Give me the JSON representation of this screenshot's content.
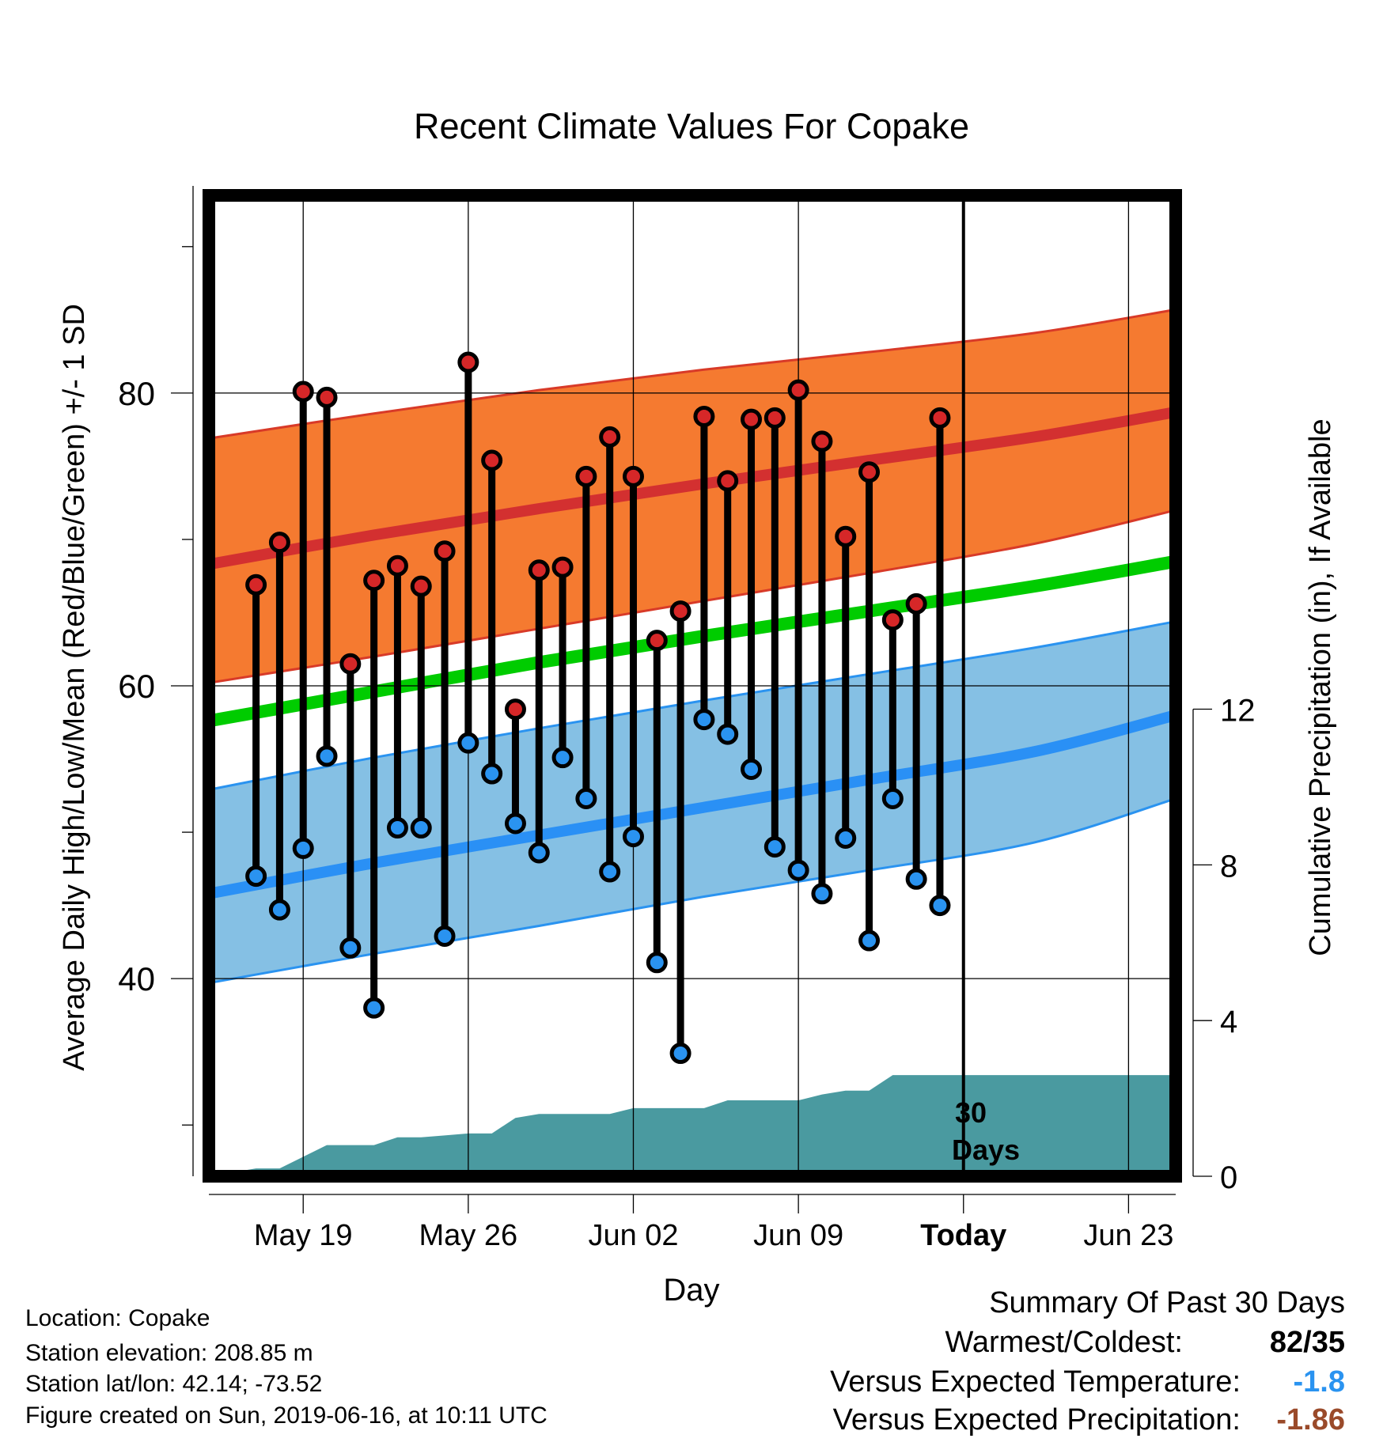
{
  "chart_data": {
    "type": "line",
    "title": "Recent Climate Values For Copake",
    "xlabel": "Day",
    "ylabel": "Average Daily High/Low/Mean (Red/Blue/Green) +/- 1 SD",
    "y2label": "Cumulative Precipitation (in), If Available",
    "x_ticks": [
      "May 19",
      "May 26",
      "Jun 02",
      "Jun 09",
      "Today",
      "Jun 23"
    ],
    "x_tick_days": [
      "2019-05-19",
      "2019-05-26",
      "2019-06-02",
      "2019-06-09",
      "2019-06-16",
      "2019-06-23"
    ],
    "x_range": [
      "2019-05-15",
      "2019-06-25"
    ],
    "y_ticks": [
      40,
      60,
      80
    ],
    "ylim": [
      26.5,
      93.5
    ],
    "y2_ticks": [
      0,
      4,
      8,
      12
    ],
    "y2lim": [
      0,
      25.2
    ],
    "today": "2019-06-16",
    "today_annotation": [
      "30",
      "Days"
    ],
    "grid": true,
    "colors": {
      "high_band": "#f57a30",
      "high_edge": "#d83a28",
      "high_mean": "#d33030",
      "low_band": "#85c0e4",
      "low_edge": "#2a93f0",
      "low_mean": "#2a90f5",
      "mean": "#00cc00",
      "precip": "#4a9aa0",
      "high_marker": "#d62728",
      "low_marker": "#2a93f0"
    },
    "normals": {
      "days": [
        "2019-05-15",
        "2019-05-22",
        "2019-05-29",
        "2019-06-05",
        "2019-06-12",
        "2019-06-19",
        "2019-06-25"
      ],
      "high_mean": [
        68.3,
        70.3,
        72.1,
        73.8,
        75.4,
        77.0,
        78.7
      ],
      "high_upper": [
        76.9,
        78.6,
        80.2,
        81.6,
        82.8,
        84.1,
        85.7
      ],
      "high_lower": [
        60.2,
        62.0,
        63.9,
        65.8,
        67.7,
        69.7,
        72.0
      ],
      "mean": [
        57.6,
        59.6,
        61.6,
        63.4,
        65.1,
        66.8,
        68.5
      ],
      "low_mean": [
        45.8,
        47.9,
        49.8,
        51.7,
        53.6,
        55.5,
        58.0
      ],
      "low_upper": [
        52.9,
        55.1,
        57.1,
        59.0,
        60.8,
        62.6,
        64.4
      ],
      "low_lower": [
        39.7,
        41.7,
        43.6,
        45.6,
        47.4,
        49.3,
        52.3
      ]
    },
    "series": [
      {
        "name": "High",
        "x": [
          "2019-05-17",
          "2019-05-18",
          "2019-05-19",
          "2019-05-20",
          "2019-05-21",
          "2019-05-22",
          "2019-05-23",
          "2019-05-24",
          "2019-05-25",
          "2019-05-26",
          "2019-05-27",
          "2019-05-28",
          "2019-05-29",
          "2019-05-30",
          "2019-05-31",
          "2019-06-01",
          "2019-06-02",
          "2019-06-03",
          "2019-06-04",
          "2019-06-05",
          "2019-06-06",
          "2019-06-07",
          "2019-06-08",
          "2019-06-09",
          "2019-06-10",
          "2019-06-11",
          "2019-06-12",
          "2019-06-13",
          "2019-06-14",
          "2019-06-15"
        ],
        "values": [
          66.9,
          69.8,
          80.1,
          79.7,
          61.5,
          67.2,
          68.2,
          66.8,
          69.2,
          82.1,
          75.4,
          58.4,
          67.9,
          68.1,
          74.3,
          77.0,
          74.3,
          63.1,
          65.1,
          78.4,
          74.0,
          78.2,
          78.3,
          80.2,
          76.7,
          70.2,
          74.6,
          64.5,
          65.6,
          78.3
        ]
      },
      {
        "name": "Low",
        "x": [
          "2019-05-17",
          "2019-05-18",
          "2019-05-19",
          "2019-05-20",
          "2019-05-21",
          "2019-05-22",
          "2019-05-23",
          "2019-05-24",
          "2019-05-25",
          "2019-05-26",
          "2019-05-27",
          "2019-05-28",
          "2019-05-29",
          "2019-05-30",
          "2019-05-31",
          "2019-06-01",
          "2019-06-02",
          "2019-06-03",
          "2019-06-04",
          "2019-06-05",
          "2019-06-06",
          "2019-06-07",
          "2019-06-08",
          "2019-06-09",
          "2019-06-10",
          "2019-06-11",
          "2019-06-12",
          "2019-06-13",
          "2019-06-14",
          "2019-06-15"
        ],
        "values": [
          47.0,
          44.7,
          48.9,
          55.2,
          42.1,
          38.0,
          50.3,
          50.3,
          42.9,
          56.1,
          54.0,
          50.6,
          48.6,
          55.1,
          52.3,
          47.3,
          49.7,
          41.1,
          34.9,
          57.7,
          56.7,
          54.3,
          49.0,
          47.4,
          45.8,
          49.6,
          42.6,
          52.3,
          46.8,
          45.0
        ]
      }
    ],
    "precip": {
      "x": [
        "2019-05-15",
        "2019-05-17",
        "2019-05-18",
        "2019-05-19",
        "2019-05-20",
        "2019-05-21",
        "2019-05-22",
        "2019-05-23",
        "2019-05-24",
        "2019-05-25",
        "2019-05-26",
        "2019-05-27",
        "2019-05-28",
        "2019-05-29",
        "2019-05-30",
        "2019-05-31",
        "2019-06-01",
        "2019-06-02",
        "2019-06-03",
        "2019-06-04",
        "2019-06-05",
        "2019-06-06",
        "2019-06-07",
        "2019-06-08",
        "2019-06-09",
        "2019-06-10",
        "2019-06-11",
        "2019-06-12",
        "2019-06-13",
        "2019-06-14",
        "2019-06-15",
        "2019-06-16",
        "2019-06-25"
      ],
      "values": [
        0,
        0.2,
        0.2,
        0.5,
        0.8,
        0.8,
        0.8,
        1.0,
        1.0,
        1.05,
        1.1,
        1.1,
        1.5,
        1.6,
        1.6,
        1.6,
        1.6,
        1.75,
        1.75,
        1.75,
        1.75,
        1.95,
        1.95,
        1.95,
        1.95,
        2.1,
        2.2,
        2.2,
        2.6,
        2.6,
        2.6,
        2.6,
        2.6
      ]
    }
  },
  "footer": {
    "location": "Location: Copake",
    "elevation": "Station elevation: 208.85 m",
    "latlon": "Station lat/lon: 42.14; -73.52",
    "created": "Figure created on Sun, 2019-06-16, at 10:11 UTC"
  },
  "summary": {
    "title": "Summary Of Past 30 Days",
    "warm_cold_label": "Warmest/Coldest:",
    "warm_cold_value": "82/35",
    "temp_label": "Versus Expected Temperature:",
    "temp_value": "-1.8",
    "temp_color": "#2a93f0",
    "precip_label": "Versus Expected Precipitation:",
    "precip_value": "-1.86",
    "precip_color": "#9a4a2a"
  }
}
